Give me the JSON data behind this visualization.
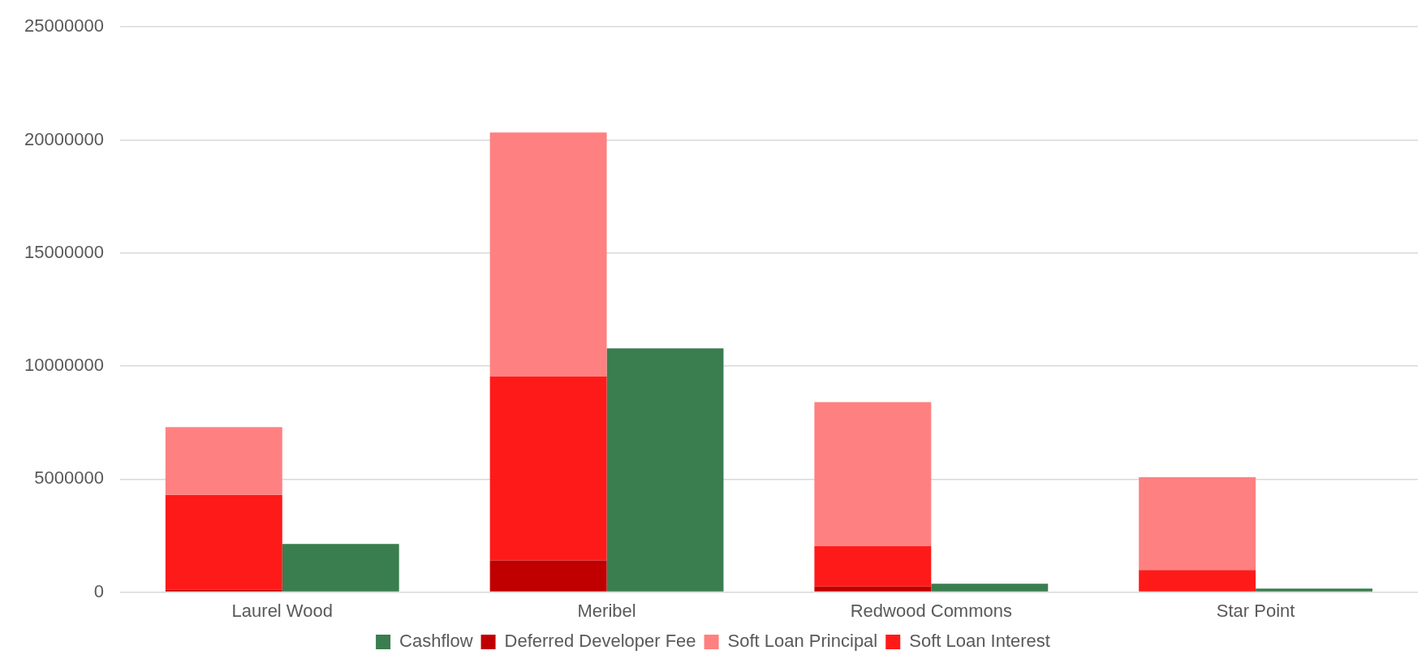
{
  "chart_data": {
    "type": "bar",
    "categories": [
      "Laurel Wood",
      "Meribel",
      "Redwood Commons",
      "Star Point"
    ],
    "series": [
      {
        "name": "Cashflow",
        "color": "#3a7d4f",
        "values": [
          2130000,
          10780000,
          370000,
          160000
        ]
      },
      {
        "name": "Deferred Developer Fee",
        "color": "#c00000",
        "base": [
          0,
          0,
          0,
          null
        ],
        "values": [
          100000,
          1400000,
          250000,
          null
        ]
      },
      {
        "name": "Soft Loan Principal",
        "color": "#ff8080",
        "base": [
          4300000,
          9550000,
          2050000,
          980000
        ],
        "values": [
          3000000,
          10780000,
          6350000,
          4100000
        ]
      },
      {
        "name": "Soft Loan Interest",
        "color": "#ff1a1a",
        "base": [
          100000,
          1400000,
          250000,
          0
        ],
        "values": [
          4200000,
          8150000,
          1800000,
          980000
        ]
      }
    ],
    "ylim": [
      0,
      25000000
    ],
    "yticks": [
      0,
      5000000,
      10000000,
      15000000,
      20000000,
      25000000
    ],
    "grid": "y",
    "legend": "bottom"
  }
}
